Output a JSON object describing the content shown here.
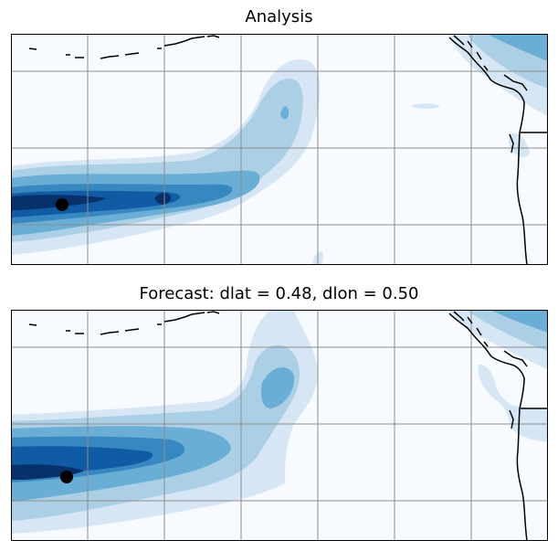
{
  "panels": [
    {
      "title": "Analysis"
    },
    {
      "title": "Forecast: dlat = 0.48, dlon = 0.50"
    }
  ],
  "colors": {
    "ocean": "#f7fbff",
    "levels": [
      "#f7fbff",
      "#d6e6f4",
      "#abd0e6",
      "#6aaed6",
      "#3787c0",
      "#105ba4",
      "#08306b"
    ],
    "gridlines": "#8c8c8c",
    "coastline": "#000000",
    "marker": "#000000"
  },
  "icons": [
    "storm-center-marker"
  ]
}
